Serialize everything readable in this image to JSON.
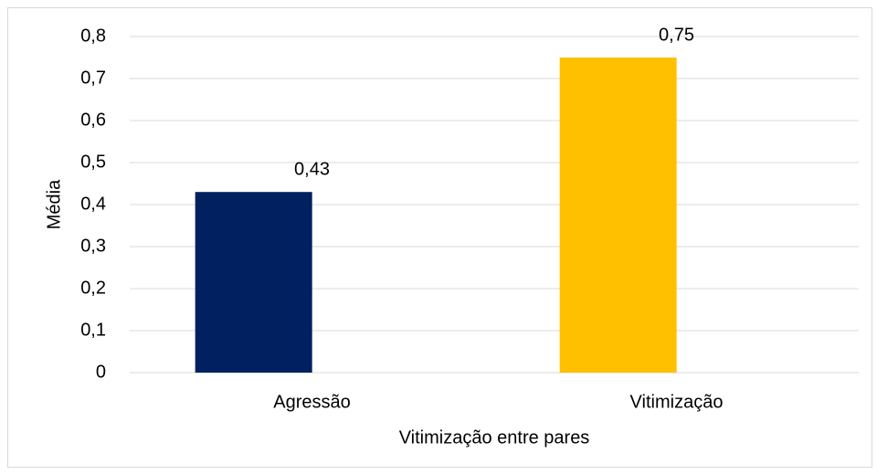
{
  "chart_data": {
    "type": "bar",
    "xlabel": "Vitimização entre pares",
    "ylabel": "Média",
    "categories": [
      "Agressão",
      "Vitimização"
    ],
    "values": [
      0.43,
      0.75
    ],
    "value_labels": [
      "0,43",
      "0,75"
    ],
    "colors": [
      "#002060",
      "#ffc000"
    ],
    "ylim": [
      0,
      0.8
    ],
    "yticks": [
      0,
      {
        "value": 0.1,
        "label": "0,1"
      },
      {
        "value": 0.2,
        "label": "0,2"
      },
      {
        "value": 0.3,
        "label": "0,3"
      },
      {
        "value": 0.4,
        "label": "0,4"
      },
      {
        "value": 0.5,
        "label": "0,5"
      },
      {
        "value": 0.6,
        "label": "0,6"
      },
      {
        "value": 0.7,
        "label": "0,7"
      },
      {
        "value": 0.8,
        "label": "0,8"
      }
    ],
    "grid": true
  }
}
